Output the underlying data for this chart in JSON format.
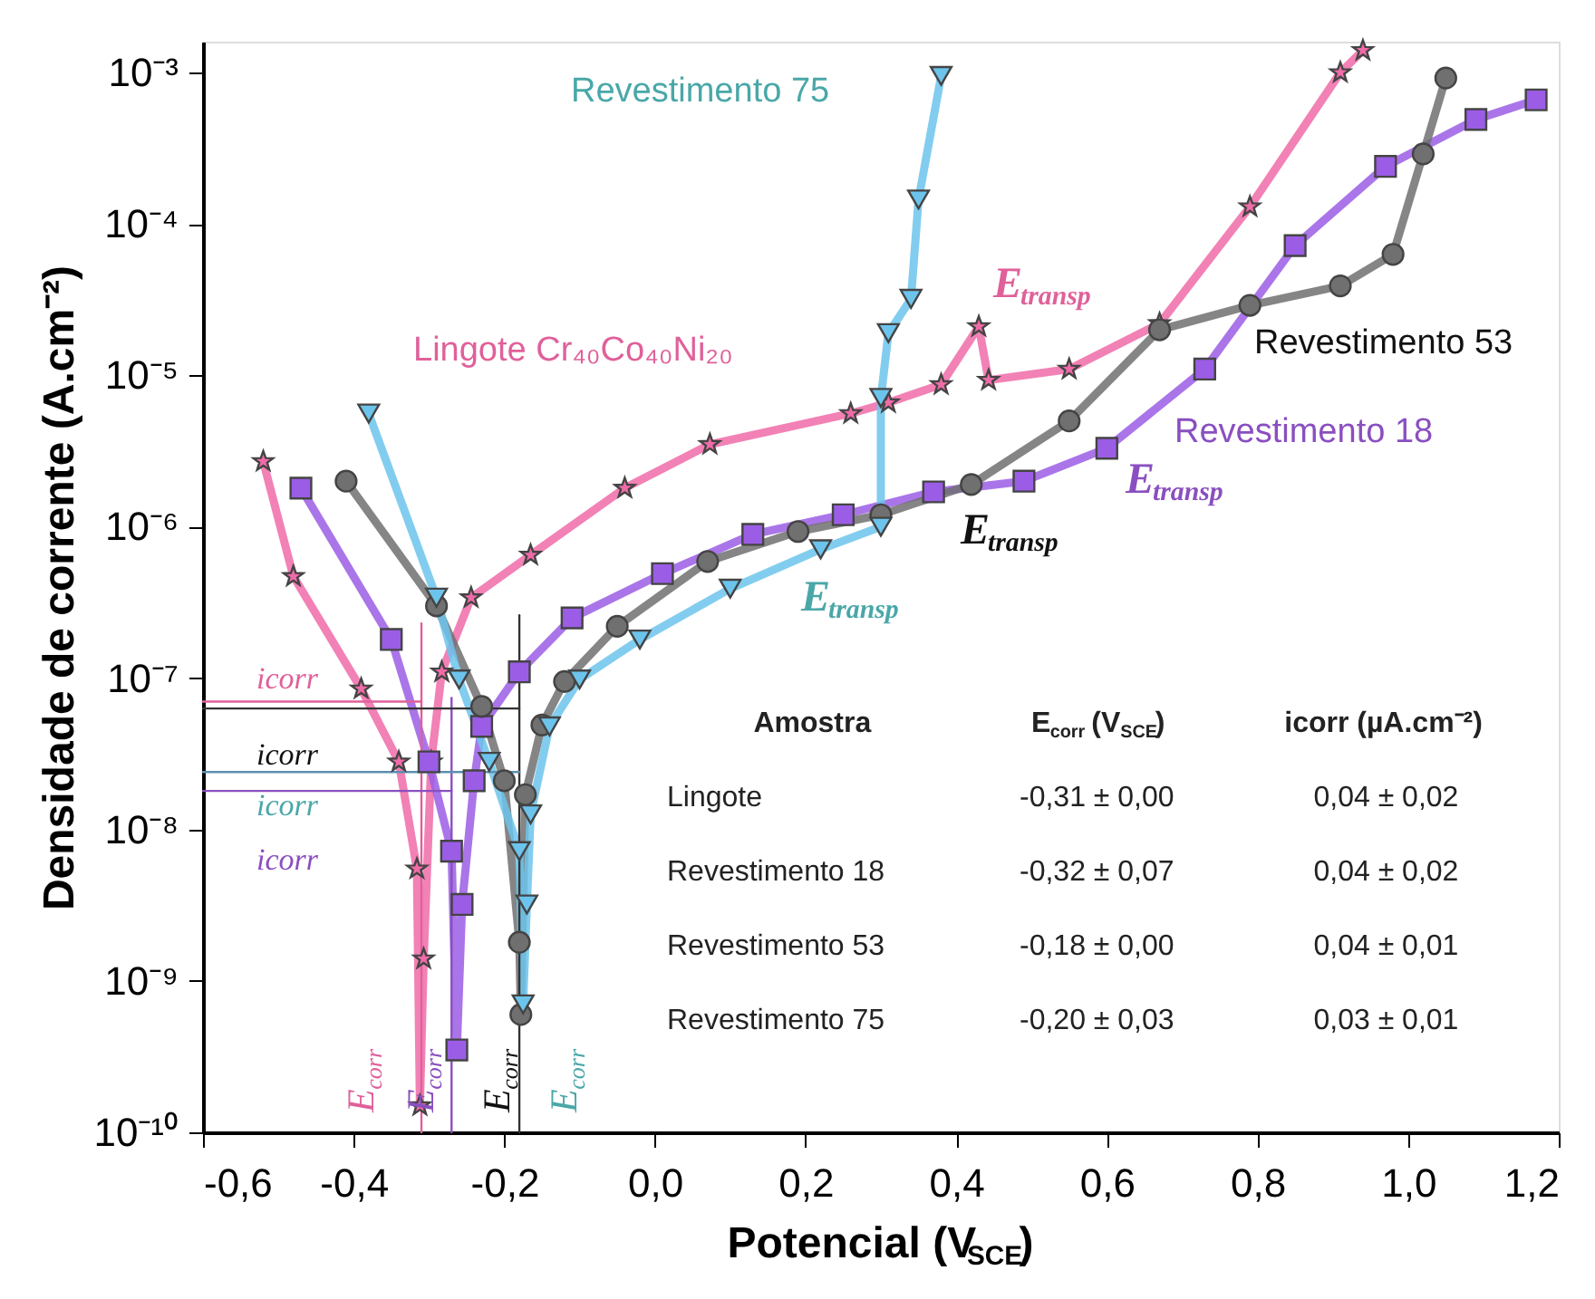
{
  "chart_data": [
    {
      "type": "line",
      "xlabel": "Potencial (V$_{SCE}$)",
      "ylabel": "Densidade de corrente (A.cm⁻²)",
      "log": "y",
      "grid": false,
      "xlim": [
        -0.6,
        1.2
      ],
      "ylim": [
        1e-10,
        0.0016
      ],
      "xticks": [
        {
          "value": -0.6,
          "label": "-0,6"
        },
        {
          "value": -0.4,
          "label": "-0,4"
        },
        {
          "value": -0.2,
          "label": "-0,2"
        },
        {
          "value": 0.0,
          "label": "0,0"
        },
        {
          "value": 0.2,
          "label": "0,2"
        },
        {
          "value": 0.4,
          "label": "0,4"
        },
        {
          "value": 0.6,
          "label": "0,6"
        },
        {
          "value": 0.8,
          "label": "0,8"
        },
        {
          "value": 1.0,
          "label": "1,0"
        },
        {
          "value": 1.2,
          "label": "1,2"
        }
      ],
      "yticks": [
        {
          "value": 1e-10,
          "label": "10⁻¹⁰"
        },
        {
          "value": 1e-09,
          "label": "10⁻⁹"
        },
        {
          "value": 1e-08,
          "label": "10⁻⁸"
        },
        {
          "value": 1e-07,
          "label": "10⁻⁷"
        },
        {
          "value": 1e-06,
          "label": "10⁻⁶"
        },
        {
          "value": 1e-05,
          "label": "10⁻⁵"
        },
        {
          "value": 0.0001,
          "label": "10⁻⁴"
        },
        {
          "value": 0.001,
          "label": "10⁻³"
        }
      ],
      "series": [
        {
          "name": "Lingote Cr₄₀Co₄₀Ni₂₀",
          "type": "line",
          "marker": "star",
          "color": "#f06ba8",
          "x": [
            -0.52,
            -0.48,
            -0.39,
            -0.34,
            -0.316,
            -0.312,
            -0.307,
            -0.297,
            -0.283,
            -0.244,
            -0.165,
            -0.04,
            0.073,
            0.26,
            0.31,
            0.38,
            0.43,
            0.443,
            0.55,
            0.67,
            0.79,
            0.91,
            0.94
          ],
          "values": [
            2.7e-06,
            4.7e-07,
            8.5e-08,
            2.8e-08,
            5.5e-09,
            1.5e-10,
            1.4e-09,
            2.8e-08,
            1.1e-07,
            3.4e-07,
            6.5e-07,
            1.8e-06,
            3.5e-06,
            5.6e-06,
            6.6e-06,
            8.7e-06,
            2.1e-05,
            9.3e-06,
            1.1e-05,
            2.2e-05,
            0.00013,
            0.001,
            0.0014
          ]
        },
        {
          "name": "Revestimento 18",
          "type": "line",
          "marker": "square",
          "color": "#9b5de5",
          "x": [
            -0.47,
            -0.35,
            -0.3,
            -0.27,
            -0.263,
            -0.256,
            -0.24,
            -0.23,
            -0.18,
            -0.11,
            0.01,
            0.13,
            0.25,
            0.37,
            0.49,
            0.6,
            0.73,
            0.85,
            0.97,
            1.09,
            1.17
          ],
          "values": [
            1.8e-06,
            1.8e-07,
            2.8e-08,
            7.2e-09,
            3.5e-10,
            3.2e-09,
            2.1e-08,
            4.8e-08,
            1.1e-07,
            2.5e-07,
            4.9e-07,
            8.9e-07,
            1.2e-06,
            1.7e-06,
            2e-06,
            3.3e-06,
            1.1e-05,
            7.2e-05,
            0.00024,
            0.00049,
            0.00066
          ]
        },
        {
          "name": "Revestimento 53",
          "type": "line",
          "marker": "circle",
          "color": "#707070",
          "x": [
            -0.41,
            -0.29,
            -0.23,
            -0.2,
            -0.18,
            -0.178,
            -0.172,
            -0.15,
            -0.12,
            -0.05,
            0.07,
            0.19,
            0.3,
            0.42,
            0.55,
            0.67,
            0.79,
            0.91,
            0.98,
            1.02,
            1.05
          ],
          "values": [
            2e-06,
            3e-07,
            6.5e-08,
            2.1e-08,
            1.8e-09,
            6e-10,
            1.7e-08,
            4.9e-08,
            9.5e-08,
            2.2e-07,
            5.9e-07,
            9.3e-07,
            1.2e-06,
            1.9e-06,
            5e-06,
            2e-05,
            2.9e-05,
            3.9e-05,
            6.3e-05,
            0.00029,
            0.00092
          ]
        },
        {
          "name": "Revestimento 75",
          "type": "line",
          "marker": "triangle",
          "color": "#6cc4ec",
          "x": [
            -0.38,
            -0.29,
            -0.26,
            -0.22,
            -0.18,
            -0.175,
            -0.17,
            -0.165,
            -0.14,
            -0.1,
            -0.02,
            0.1,
            0.22,
            0.3,
            0.3,
            0.31,
            0.34,
            0.35,
            0.38
          ],
          "values": [
            5.6e-06,
            3.4e-07,
            9.8e-08,
            2.8e-08,
            7.2e-09,
            7e-10,
            3.2e-09,
            1.26e-08,
            4.8e-08,
            9.8e-08,
            1.8e-07,
            3.9e-07,
            7.1e-07,
            1e-06,
            7.1e-06,
            1.9e-05,
            3.2e-05,
            0.000145,
            0.00095
          ]
        },
        {
          "type": "line",
          "color": "#e0609a",
          "x": [
            -0.31,
            -0.31
          ],
          "values": [
            1e-10,
            2.3e-07
          ]
        },
        {
          "type": "line",
          "color": "#e0609a",
          "x": [
            -0.6,
            -0.31
          ],
          "values": [
            7e-08,
            7e-08
          ]
        },
        {
          "type": "line",
          "color": "#8a4fc0",
          "x": [
            -0.27,
            -0.27
          ],
          "values": [
            1e-10,
            7.4e-08
          ]
        },
        {
          "type": "line",
          "color": "#8a4fc0",
          "x": [
            -0.6,
            -0.27
          ],
          "values": [
            1.8e-08,
            1.8e-08
          ]
        },
        {
          "type": "line",
          "color": "#333333",
          "x": [
            -0.18,
            -0.18
          ],
          "values": [
            1e-10,
            2.6e-07
          ]
        },
        {
          "type": "line",
          "color": "#333333",
          "x": [
            -0.6,
            -0.18
          ],
          "values": [
            6.3e-08,
            6.3e-08
          ]
        },
        {
          "type": "line",
          "color": "#5b8fb0",
          "x": [
            -0.6,
            -0.18
          ],
          "values": [
            2.4e-08,
            2.4e-08
          ]
        }
      ],
      "annotations": [
        "E$_{corr}$",
        "E$_{corr}$",
        "E$_{corr}$",
        "E$_{corr}$",
        "icorr",
        "icorr",
        "icorr",
        "icorr",
        "E$_{transp}$",
        "E$_{transp}$",
        "E$_{transp}$",
        "E$_{transp}$"
      ]
    },
    {
      "type": "other",
      "annotations": [
        "Amostra",
        "E$_{corr}$ (V$_{SCE}$)",
        "icorr (µA.cm⁻²)",
        "Lingote",
        "-0,31 ± 0,00",
        "0,04 ± 0,02",
        "Revestimento 18",
        "-0,32 ± 0,07",
        "0,04 ± 0,02",
        "Revestimento 53",
        "-0,18 ± 0,00",
        "0,04 ± 0,01",
        "Revestimento 75",
        "-0,20 ± 0,03",
        "0,03 ± 0,01"
      ]
    }
  ]
}
